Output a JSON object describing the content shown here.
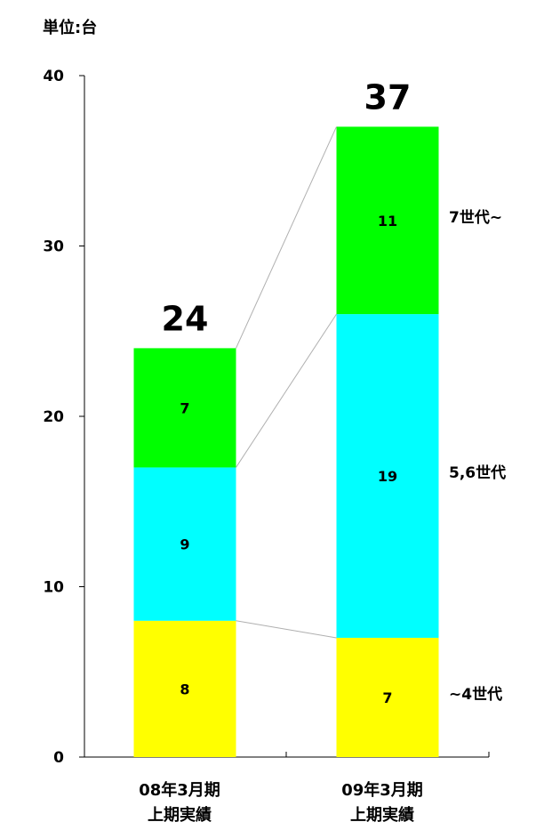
{
  "unit_label": "単位:台",
  "chart_data": {
    "type": "bar",
    "stacked": true,
    "categories": [
      "08年3月期\n上期実績",
      "09年3月期\n上期実績"
    ],
    "series": [
      {
        "name": "~4世代",
        "values": [
          8,
          7
        ],
        "color": "#ffff00"
      },
      {
        "name": "5,6世代",
        "values": [
          9,
          19
        ],
        "color": "#00ffff"
      },
      {
        "name": "7世代~",
        "values": [
          7,
          11
        ],
        "color": "#00ff00"
      }
    ],
    "totals": [
      24,
      37
    ],
    "ylim": [
      0,
      40
    ],
    "yticks": [
      0,
      10,
      20,
      30,
      40
    ],
    "grid": false,
    "legend_placement": "right, aligned with the segments"
  }
}
